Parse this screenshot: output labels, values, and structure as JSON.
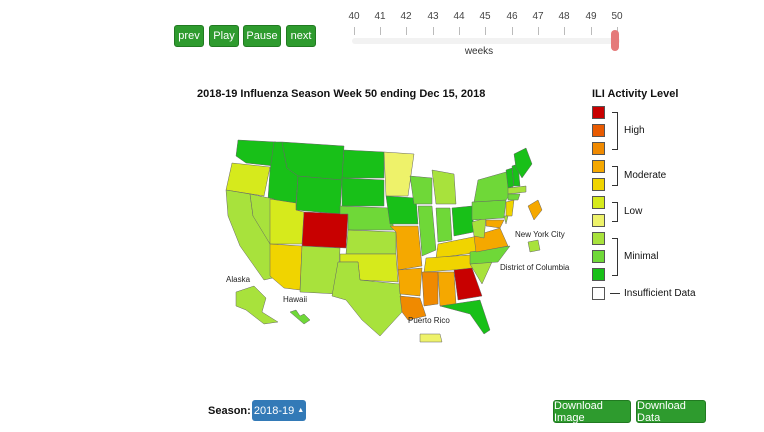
{
  "controls": {
    "prev": "prev",
    "play": "Play",
    "pause": "Pause",
    "next": "next"
  },
  "slider": {
    "ticks": [
      "40",
      "41",
      "42",
      "43",
      "44",
      "45",
      "46",
      "47",
      "48",
      "49",
      "50"
    ],
    "label": "weeks",
    "current_week": "50"
  },
  "map": {
    "title": "2018-19 Influenza Season Week 50 ending Dec 15, 2018",
    "labels": {
      "alaska": "Alaska",
      "hawaii": "Hawaii",
      "puerto_rico": "Puerto Rico",
      "new_york_city": "New York City",
      "dc": "District of Columbia"
    },
    "colors": {
      "high": "#c80000",
      "high_mid": "#e85a00",
      "high_low": "#f08a00",
      "moderate": "#f5a800",
      "moderate_low": "#f0d400",
      "low": "#d6ea1c",
      "low_light": "#eef26a",
      "minimal_light": "#a8e23c",
      "minimal_mid": "#6fd838",
      "minimal": "#18c018"
    }
  },
  "legend": {
    "title": "ILI Activity Level",
    "high": "High",
    "moderate": "Moderate",
    "low": "Low",
    "minimal": "Minimal",
    "insufficient": "Insufficient Data"
  },
  "footer": {
    "season_label": "Season:",
    "season_value": "2018-19",
    "download_image": "Download Image",
    "download_data": "Download Data"
  }
}
